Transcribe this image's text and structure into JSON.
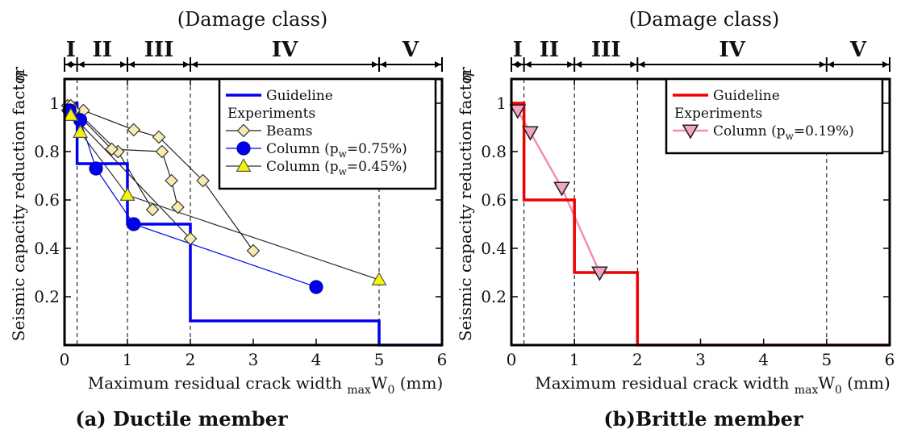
{
  "panel_titles": [
    "(Damage class)",
    "(Damage class)"
  ],
  "captions": [
    "(a) Ductile member",
    "(b)Brittle member"
  ],
  "y_axis_symbol": "η",
  "chart_data": [
    {
      "type": "line",
      "xlabel": "Maximum residual crack width",
      "xlabel_sub": "max",
      "xlabel_var": "W",
      "xlabel_varsub": "0",
      "xlabel_unit": "(mm)",
      "ylabel": "Seismic capacity reduction factor",
      "xlim": [
        0,
        6
      ],
      "ylim": [
        0,
        1.1
      ],
      "xticks": [
        "0",
        "1",
        "2",
        "3",
        "4",
        "5",
        "6"
      ],
      "yticks": [
        "0.2",
        "0.4",
        "0.6",
        "0.8",
        "1"
      ],
      "ytick_values": [
        0.2,
        0.4,
        0.6,
        0.8,
        1.0
      ],
      "dashed_x": [
        0.2,
        1,
        2,
        5
      ],
      "damage_classes": [
        {
          "label": "I",
          "from": 0,
          "to": 0.2
        },
        {
          "label": "II",
          "from": 0.2,
          "to": 1
        },
        {
          "label": "III",
          "from": 1,
          "to": 2
        },
        {
          "label": "IV",
          "from": 2,
          "to": 5
        },
        {
          "label": "V",
          "from": 5,
          "to": 6
        }
      ],
      "legend": {
        "placement": "top-right",
        "guideline": "Guideline",
        "group": "Experiments"
      },
      "guideline": {
        "color": "#0000ee",
        "points": [
          [
            0,
            1
          ],
          [
            0.2,
            1
          ],
          [
            0.2,
            0.75
          ],
          [
            1,
            0.75
          ],
          [
            1,
            0.5
          ],
          [
            2,
            0.5
          ],
          [
            2,
            0.1
          ],
          [
            5,
            0.1
          ],
          [
            5,
            0
          ],
          [
            6,
            0
          ]
        ]
      },
      "series": [
        {
          "name": "Beams",
          "marker": "diamond",
          "color": "#f6ebb3",
          "line": "#222222",
          "points": [
            [
              0.05,
              0.99
            ],
            [
              0.3,
              0.97
            ],
            [
              1.1,
              0.89
            ],
            [
              1.5,
              0.86
            ],
            [
              2.2,
              0.68
            ],
            [
              3.0,
              0.39
            ]
          ]
        },
        {
          "name": "",
          "marker": "diamond",
          "color": "#f6ebb3",
          "line": "#222222",
          "points": [
            [
              0.1,
              0.99
            ],
            [
              0.85,
              0.8
            ],
            [
              1.4,
              0.56
            ]
          ]
        },
        {
          "name": "",
          "marker": "diamond",
          "color": "#f6ebb3",
          "line": "#222222",
          "points": [
            [
              0.15,
              0.97
            ],
            [
              0.75,
              0.81
            ],
            [
              1.55,
              0.8
            ],
            [
              1.7,
              0.68
            ],
            [
              1.8,
              0.57
            ]
          ]
        },
        {
          "name": "",
          "marker": "diamond",
          "color": "#f6ebb3",
          "line": "#222222",
          "points": [
            [
              0.05,
              0.97
            ],
            [
              2.0,
              0.44
            ]
          ]
        },
        {
          "name": "Column (p",
          "name_sub": "w",
          "name_tail": "=0.75%)",
          "marker": "circle",
          "color": "#0000ee",
          "line": "#0000ee",
          "points": [
            [
              0.08,
              0.97
            ],
            [
              0.25,
              0.93
            ],
            [
              0.5,
              0.73
            ],
            [
              1.1,
              0.5
            ],
            [
              4.0,
              0.24
            ]
          ]
        },
        {
          "name": "Column (p",
          "name_sub": "w",
          "name_tail": "=0.45%)",
          "marker": "triangle",
          "color": "#f5f500",
          "line": "#333333",
          "points": [
            [
              0.1,
              0.95
            ],
            [
              0.25,
              0.88
            ],
            [
              1.0,
              0.62
            ],
            [
              5.0,
              0.27
            ]
          ]
        }
      ]
    },
    {
      "type": "line",
      "xlabel": "Maximum residual crack width",
      "xlabel_sub": "max",
      "xlabel_var": "W",
      "xlabel_varsub": "0",
      "xlabel_unit": "(mm)",
      "ylabel": "Seismic capacity reduction factor",
      "xlim": [
        0,
        6
      ],
      "ylim": [
        0,
        1.1
      ],
      "xticks": [
        "0",
        "1",
        "2",
        "3",
        "4",
        "5",
        "6"
      ],
      "yticks": [
        "0.2",
        "0.4",
        "0.6",
        "0.8",
        "1"
      ],
      "ytick_values": [
        0.2,
        0.4,
        0.6,
        0.8,
        1.0
      ],
      "dashed_x": [
        0.2,
        1,
        2,
        5
      ],
      "damage_classes": [
        {
          "label": "I",
          "from": 0,
          "to": 0.2
        },
        {
          "label": "II",
          "from": 0.2,
          "to": 1
        },
        {
          "label": "III",
          "from": 1,
          "to": 2
        },
        {
          "label": "IV",
          "from": 2,
          "to": 5
        },
        {
          "label": "V",
          "from": 5,
          "to": 6
        }
      ],
      "legend": {
        "placement": "top-right",
        "guideline": "Guideline",
        "group": "Experiments"
      },
      "guideline": {
        "color": "#ee0000",
        "points": [
          [
            0,
            1
          ],
          [
            0.2,
            1
          ],
          [
            0.2,
            0.6
          ],
          [
            1,
            0.6
          ],
          [
            1,
            0.3
          ],
          [
            2,
            0.3
          ],
          [
            2,
            0
          ],
          [
            6,
            0
          ]
        ]
      },
      "series": [
        {
          "name": "Column (p",
          "name_sub": "w",
          "name_tail": "=0.19%)",
          "marker": "triangle-down",
          "color": "#f4a4c4",
          "line": "#f48cb8",
          "points": [
            [
              0.1,
              0.97
            ],
            [
              0.3,
              0.88
            ],
            [
              0.8,
              0.65
            ],
            [
              1.4,
              0.3
            ]
          ]
        }
      ]
    }
  ]
}
